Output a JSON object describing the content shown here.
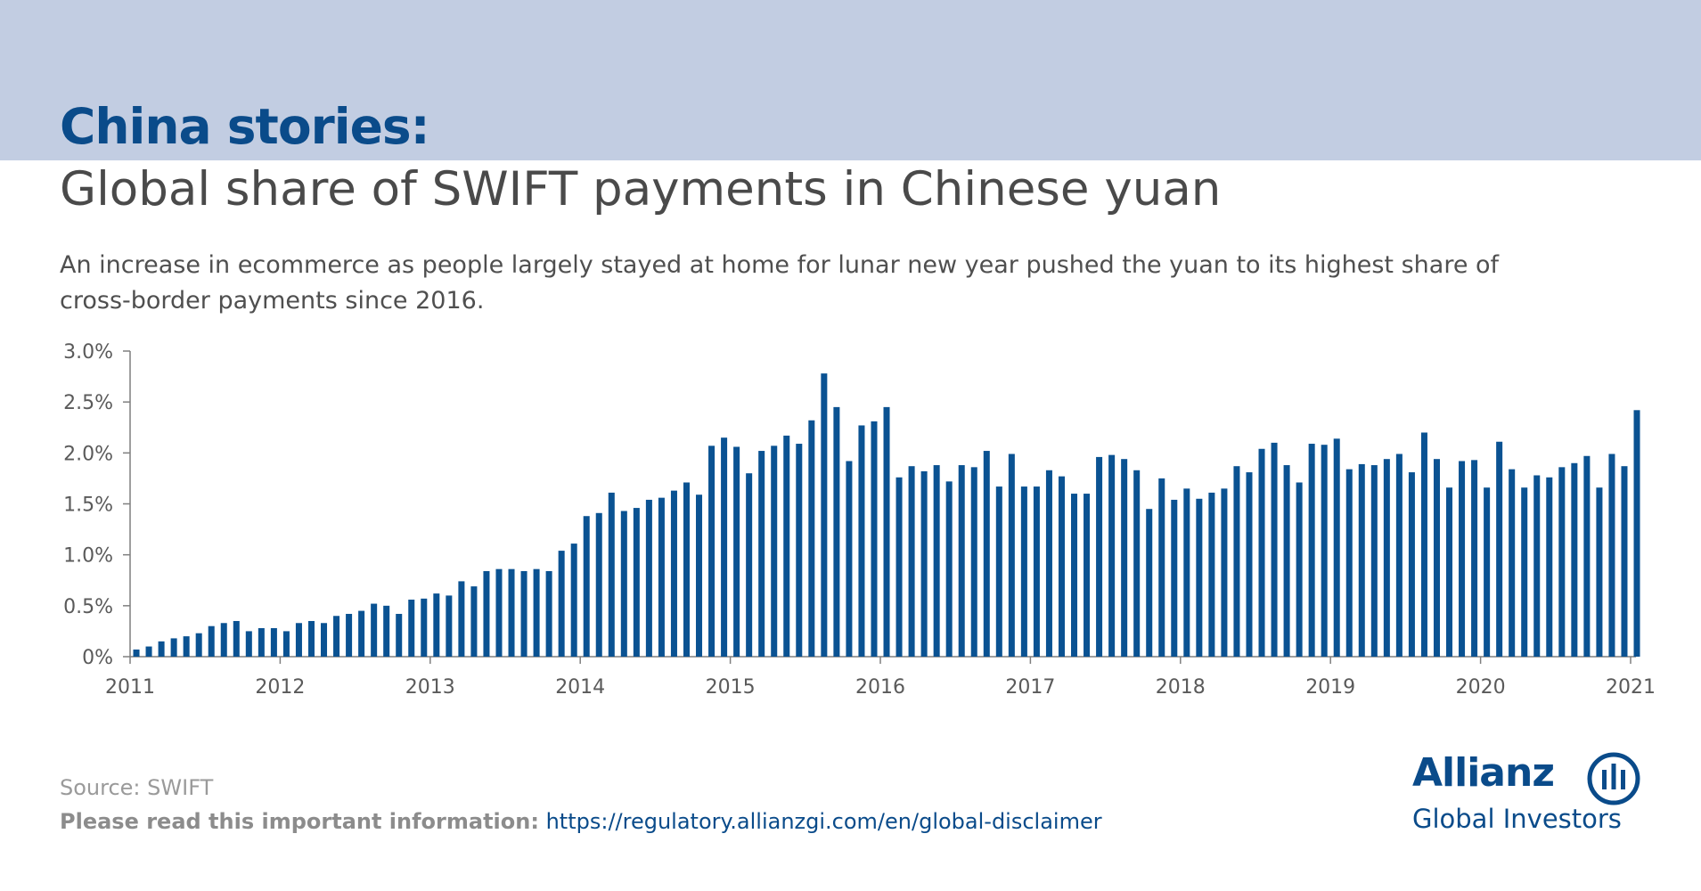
{
  "header": {
    "title": "China stories:",
    "subtitle": "Global share of SWIFT payments in Chinese yuan",
    "description": "An increase in ecommerce as people largely stayed at home for lunar new year pushed the yuan to its highest share of cross-border payments since 2016."
  },
  "footer": {
    "source": "Source: SWIFT",
    "disclaimer_label": "Please read this important information:",
    "disclaimer_url": "https://regulatory.allianzgi.com/en/global-disclaimer"
  },
  "logo": {
    "name": "Allianz",
    "tagline": "Global Investors"
  },
  "colors": {
    "header_band": "#c2cde2",
    "title": "#0a4b8a",
    "bar": "#0a5292",
    "axis": "#7f7f7f"
  },
  "chart_data": {
    "type": "bar",
    "x_ticks": [
      "2011",
      "2012",
      "2013",
      "2014",
      "2015",
      "2016",
      "2017",
      "2018",
      "2019",
      "2020",
      "2021"
    ],
    "y_ticks": [
      "0%",
      "0.5%",
      "1.0%",
      "1.5%",
      "2.0%",
      "2.5%",
      "3.0%"
    ],
    "ylim": [
      0,
      3.0
    ],
    "grid": false,
    "start": "2011-01",
    "frequency": "monthly",
    "values": [
      0.07,
      0.1,
      0.15,
      0.18,
      0.2,
      0.23,
      0.3,
      0.33,
      0.35,
      0.25,
      0.28,
      0.28,
      0.25,
      0.33,
      0.35,
      0.33,
      0.4,
      0.42,
      0.45,
      0.52,
      0.5,
      0.42,
      0.56,
      0.57,
      0.62,
      0.6,
      0.74,
      0.69,
      0.84,
      0.86,
      0.86,
      0.84,
      0.86,
      0.84,
      1.04,
      1.11,
      1.38,
      1.41,
      1.61,
      1.43,
      1.46,
      1.54,
      1.56,
      1.63,
      1.71,
      1.59,
      2.07,
      2.15,
      2.06,
      1.8,
      2.02,
      2.07,
      2.17,
      2.09,
      2.32,
      2.78,
      2.45,
      1.92,
      2.27,
      2.31,
      2.45,
      1.76,
      1.87,
      1.82,
      1.88,
      1.72,
      1.88,
      1.86,
      2.02,
      1.67,
      1.99,
      1.67,
      1.67,
      1.83,
      1.77,
      1.6,
      1.6,
      1.96,
      1.98,
      1.94,
      1.83,
      1.45,
      1.75,
      1.54,
      1.65,
      1.55,
      1.61,
      1.65,
      1.87,
      1.81,
      2.04,
      2.1,
      1.88,
      1.71,
      2.09,
      2.08,
      2.14,
      1.84,
      1.89,
      1.88,
      1.94,
      1.99,
      1.81,
      2.2,
      1.94,
      1.66,
      1.92,
      1.93,
      1.66,
      2.11,
      1.84,
      1.66,
      1.78,
      1.76,
      1.86,
      1.9,
      1.97,
      1.66,
      1.99,
      1.87,
      2.42
    ]
  }
}
